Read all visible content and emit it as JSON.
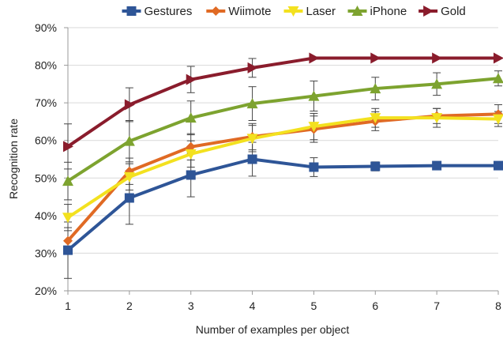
{
  "chart_data": {
    "type": "line",
    "title": "",
    "xlabel": "Number of examples per object",
    "ylabel": "Recognition rate",
    "x": [
      1,
      2,
      3,
      4,
      5,
      6,
      7,
      8
    ],
    "x_tick_labels": [
      "1",
      "2",
      "3",
      "4",
      "5",
      "6",
      "7",
      "8"
    ],
    "ylim": [
      20,
      90
    ],
    "y_ticks": [
      20,
      30,
      40,
      50,
      60,
      70,
      80,
      90
    ],
    "y_tick_labels": [
      "20%",
      "30%",
      "40%",
      "50%",
      "60%",
      "70%",
      "80%",
      "90%"
    ],
    "grid": "horizontal",
    "legend_position": "top",
    "series": [
      {
        "name": "Gestures",
        "color": "#2e5597",
        "marker": "square",
        "values": [
          30.8,
          44.7,
          50.8,
          55.0,
          52.9,
          53.1,
          53.3,
          53.3
        ],
        "errors": [
          7.5,
          7.0,
          5.8,
          4.5,
          2.5,
          1.2,
          1.0,
          1.0
        ]
      },
      {
        "name": "Wiimote",
        "color": "#e06a24",
        "marker": "diamond",
        "values": [
          33.3,
          51.8,
          58.3,
          61.0,
          63.0,
          65.1,
          66.5,
          67.0
        ],
        "errors": [
          3.5,
          3.5,
          3.5,
          3.5,
          3.5,
          2.5,
          2.0,
          2.5
        ]
      },
      {
        "name": "Laser",
        "color": "#f3e11f",
        "marker": "triangle-down",
        "values": [
          39.5,
          50.3,
          56.4,
          60.5,
          63.7,
          66.0,
          66.0,
          65.7
        ],
        "errors": [
          3.5,
          3.5,
          3.5,
          3.5,
          3.5,
          2.5,
          2.5,
          2.0
        ]
      },
      {
        "name": "iPhone",
        "color": "#7da32f",
        "marker": "triangle-up",
        "values": [
          49.2,
          59.8,
          66.0,
          69.8,
          71.8,
          73.8,
          75.0,
          76.5
        ],
        "errors": [
          5.0,
          5.5,
          4.5,
          4.5,
          4.0,
          3.0,
          3.0,
          2.0
        ]
      },
      {
        "name": "Gold",
        "color": "#8a1c2c",
        "marker": "triangle-right",
        "values": [
          58.4,
          69.5,
          76.2,
          79.3,
          81.9,
          81.9,
          81.9,
          81.9
        ],
        "errors": [
          6.0,
          4.5,
          3.5,
          2.5,
          0,
          0,
          0,
          0
        ]
      }
    ]
  }
}
